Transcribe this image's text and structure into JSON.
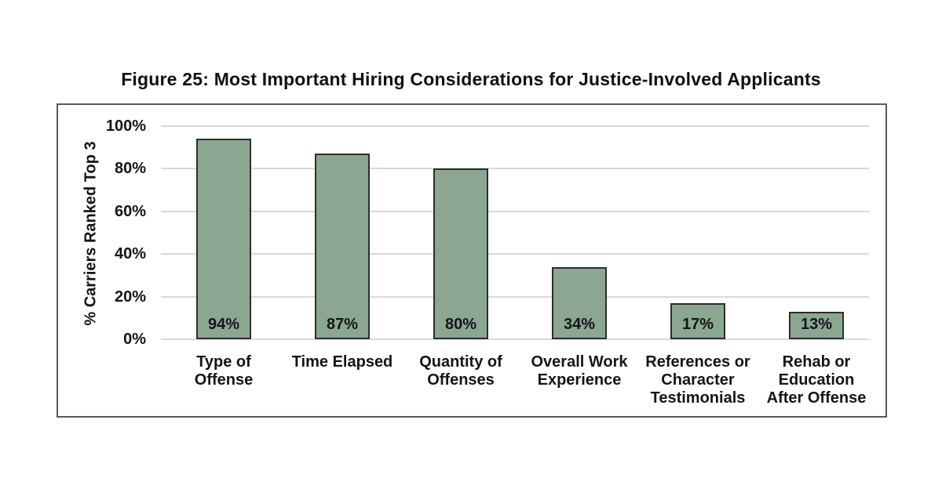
{
  "figure_title": "Figure 25: Most Important Hiring Considerations for Justice-Involved Applicants",
  "chart_data": {
    "type": "bar",
    "title": "Figure 25: Most Important Hiring Considerations for Justice-Involved Applicants",
    "categories": [
      "Type of\nOffense",
      "Time Elapsed",
      "Quantity of\nOffenses",
      "Overall Work\nExperience",
      "References or\nCharacter\nTestimonials",
      "Rehab or\nEducation\nAfter Offense"
    ],
    "values": [
      94,
      87,
      80,
      34,
      17,
      13
    ],
    "value_labels": [
      "94%",
      "87%",
      "80%",
      "34%",
      "17%",
      "13%"
    ],
    "xlabel": "",
    "ylabel": "% Carriers Ranked Top 3",
    "yticks": [
      0,
      20,
      40,
      60,
      80,
      100
    ],
    "ytick_labels": [
      "0%",
      "20%",
      "40%",
      "60%",
      "80%",
      "100%"
    ],
    "ylim": [
      0,
      100
    ],
    "grid": true,
    "legend": false,
    "bar_fill_color": "#8CA791",
    "bar_border_color": "#2B2F2B",
    "gridline_color": "#D9D9D9",
    "frame_border_color": "#595959",
    "text_color": "#14141C"
  }
}
